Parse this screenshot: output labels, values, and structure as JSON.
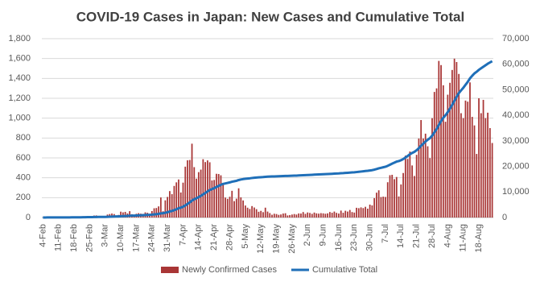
{
  "chart_data": {
    "type": "bar-line",
    "title": "COVID-19 Cases in Japan: New Cases and Cumulative Total",
    "categories": [
      "4-Feb",
      null,
      null,
      null,
      null,
      null,
      null,
      "11-Feb",
      null,
      null,
      null,
      null,
      null,
      null,
      "18-Feb",
      null,
      null,
      null,
      null,
      null,
      null,
      "25-Feb",
      null,
      null,
      null,
      null,
      null,
      null,
      "3-Mar",
      null,
      null,
      null,
      null,
      null,
      null,
      "10-Mar",
      null,
      null,
      null,
      null,
      null,
      null,
      "17-Mar",
      null,
      null,
      null,
      null,
      null,
      null,
      "24-Mar",
      null,
      null,
      null,
      null,
      null,
      null,
      "31-Mar",
      null,
      null,
      null,
      null,
      null,
      null,
      "7-Apr",
      null,
      null,
      null,
      null,
      null,
      null,
      "14-Apr",
      null,
      null,
      null,
      null,
      null,
      null,
      "21-Apr",
      null,
      null,
      null,
      null,
      null,
      null,
      "28-Apr",
      null,
      null,
      null,
      null,
      null,
      null,
      "5-May",
      null,
      null,
      null,
      null,
      null,
      null,
      "12-May",
      null,
      null,
      null,
      null,
      null,
      null,
      "19-May",
      null,
      null,
      null,
      null,
      null,
      null,
      "26-May",
      null,
      null,
      null,
      null,
      null,
      null,
      "2-Jun",
      null,
      null,
      null,
      null,
      null,
      null,
      "9-Jun",
      null,
      null,
      null,
      null,
      null,
      null,
      "16-Jun",
      null,
      null,
      null,
      null,
      null,
      null,
      "23-Jun",
      null,
      null,
      null,
      null,
      null,
      null,
      "30-Jun",
      null,
      null,
      null,
      null,
      null,
      null,
      "7-Jul",
      null,
      null,
      null,
      null,
      null,
      null,
      "14-Jul",
      null,
      null,
      null,
      null,
      null,
      null,
      "21-Jul",
      null,
      null,
      null,
      null,
      null,
      null,
      "28-Jul",
      null,
      null,
      null,
      null,
      null,
      null,
      "4-Aug",
      null,
      null,
      null,
      null,
      null,
      null,
      "11-Aug",
      null,
      null,
      null,
      null,
      null,
      null,
      "18-Aug",
      null,
      null,
      null,
      null,
      null,
      null
    ],
    "series": [
      {
        "name": "Newly Confirmed Cases",
        "color": "#a93636",
        "values": [
          1,
          0,
          2,
          3,
          0,
          1,
          0,
          3,
          1,
          2,
          1,
          6,
          4,
          5,
          10,
          8,
          12,
          9,
          5,
          13,
          7,
          14,
          12,
          20,
          21,
          14,
          15,
          9,
          12,
          30,
          35,
          40,
          35,
          20,
          26,
          59,
          52,
          57,
          41,
          64,
          33,
          15,
          38,
          44,
          39,
          37,
          52,
          48,
          38,
          65,
          93,
          96,
          112,
          202,
          63,
          173,
          207,
          266,
          235,
          318,
          354,
          383,
          252,
          351,
          512,
          576,
          579,
          743,
          507,
          391,
          457,
          482,
          587,
          558,
          575,
          556,
          373,
          378,
          440,
          438,
          425,
          348,
          201,
          188,
          209,
          269,
          165,
          190,
          294,
          203,
          172,
          121,
          99,
          86,
          115,
          101,
          84,
          58,
          67,
          54,
          99,
          60,
          45,
          28,
          38,
          35,
          27,
          31,
          40,
          43,
          21,
          25,
          30,
          35,
          30,
          41,
          40,
          55,
          37,
          51,
          46,
          37,
          50,
          42,
          39,
          44,
          42,
          38,
          42,
          55,
          48,
          60,
          47,
          40,
          70,
          48,
          68,
          60,
          76,
          55,
          50,
          98,
          94,
          102,
          95,
          108,
          89,
          130,
          122,
          195,
          250,
          274,
          206,
          210,
          207,
          355,
          426,
          430,
          386,
          408,
          212,
          333,
          448,
          623,
          590,
          664,
          524,
          418,
          631,
          795,
          981,
          795,
          844,
          717,
          598,
          1000,
          1264,
          1300,
          1576,
          1534,
          1331,
          964,
          1236,
          1356,
          1485,
          1599,
          1565,
          1445,
          1050,
          1000,
          1177,
          1166,
          1360,
          1013,
          927,
          640,
          1200,
          1050,
          1184,
          1000,
          1055,
          900,
          750
        ]
      },
      {
        "name": "Cumulative Total",
        "color": "#1f6fb8",
        "axis": "y2",
        "values": [
          20,
          20,
          21,
          22,
          22,
          23,
          25,
          28,
          29,
          33,
          34,
          41,
          43,
          59,
          66,
          73,
          84,
          93,
          105,
          117,
          144,
          158,
          170,
          186,
          200,
          216,
          230,
          243,
          256,
          286,
          321,
          360,
          395,
          415,
          441,
          500,
          552,
          609,
          650,
          714,
          747,
          762,
          800,
          844,
          883,
          920,
          972,
          1020,
          1058,
          1123,
          1216,
          1312,
          1424,
          1626,
          1689,
          1862,
          2069,
          2335,
          2570,
          2888,
          3242,
          3625,
          3877,
          4228,
          4740,
          5316,
          5895,
          6638,
          7145,
          7536,
          7993,
          8475,
          9062,
          9620,
          10195,
          10751,
          11124,
          11502,
          11942,
          12380,
          12805,
          13153,
          13354,
          13542,
          13751,
          14020,
          14185,
          14375,
          14669,
          14872,
          15044,
          15165,
          15264,
          15350,
          15465,
          15566,
          15650,
          15708,
          15775,
          15829,
          15928,
          15988,
          16033,
          16061,
          16099,
          16134,
          16161,
          16192,
          16232,
          16275,
          16296,
          16321,
          16351,
          16386,
          16416,
          16457,
          16497,
          16552,
          16589,
          16640,
          16686,
          16723,
          16773,
          16815,
          16854,
          16898,
          16940,
          16978,
          17020,
          17075,
          17123,
          17183,
          17230,
          17270,
          17340,
          17388,
          17456,
          17516,
          17592,
          17647,
          17697,
          17795,
          17889,
          17991,
          18086,
          18194,
          18283,
          18413,
          18535,
          18730,
          18980,
          19254,
          19460,
          19670,
          19877,
          20232,
          20658,
          21088,
          21474,
          21882,
          22094,
          22427,
          22875,
          23498,
          24088,
          24752,
          25276,
          25694,
          26325,
          27120,
          28101,
          28896,
          29740,
          30457,
          31055,
          32055,
          33319,
          34619,
          36195,
          37729,
          39060,
          40024,
          41260,
          42616,
          44101,
          45700,
          47265,
          48710,
          49760,
          50760,
          51937,
          53103,
          54463,
          55476,
          56403,
          57043,
          57800,
          58400,
          59000,
          59600,
          60200,
          60700,
          61200
        ]
      }
    ],
    "ylim": [
      0,
      1800
    ],
    "yticks": [
      0,
      200,
      400,
      600,
      800,
      {
        "value": 1000,
        "label": "1,000"
      },
      {
        "value": 1200,
        "label": "1,200"
      },
      {
        "value": 1400,
        "label": "1,400"
      },
      {
        "value": 1600,
        "label": "1,600"
      },
      {
        "value": 1800,
        "label": "1,800"
      }
    ],
    "y2lim": [
      0,
      70000
    ],
    "y2ticks": [
      0,
      {
        "value": 10000,
        "label": "10,000"
      },
      {
        "value": 20000,
        "label": "20,000"
      },
      {
        "value": 30000,
        "label": "30,000"
      },
      {
        "value": 40000,
        "label": "40,000"
      },
      {
        "value": 50000,
        "label": "50,000"
      },
      {
        "value": 60000,
        "label": "60,000"
      },
      {
        "value": 70000,
        "label": "70,000"
      }
    ],
    "grid": true,
    "legend": "bottom"
  }
}
